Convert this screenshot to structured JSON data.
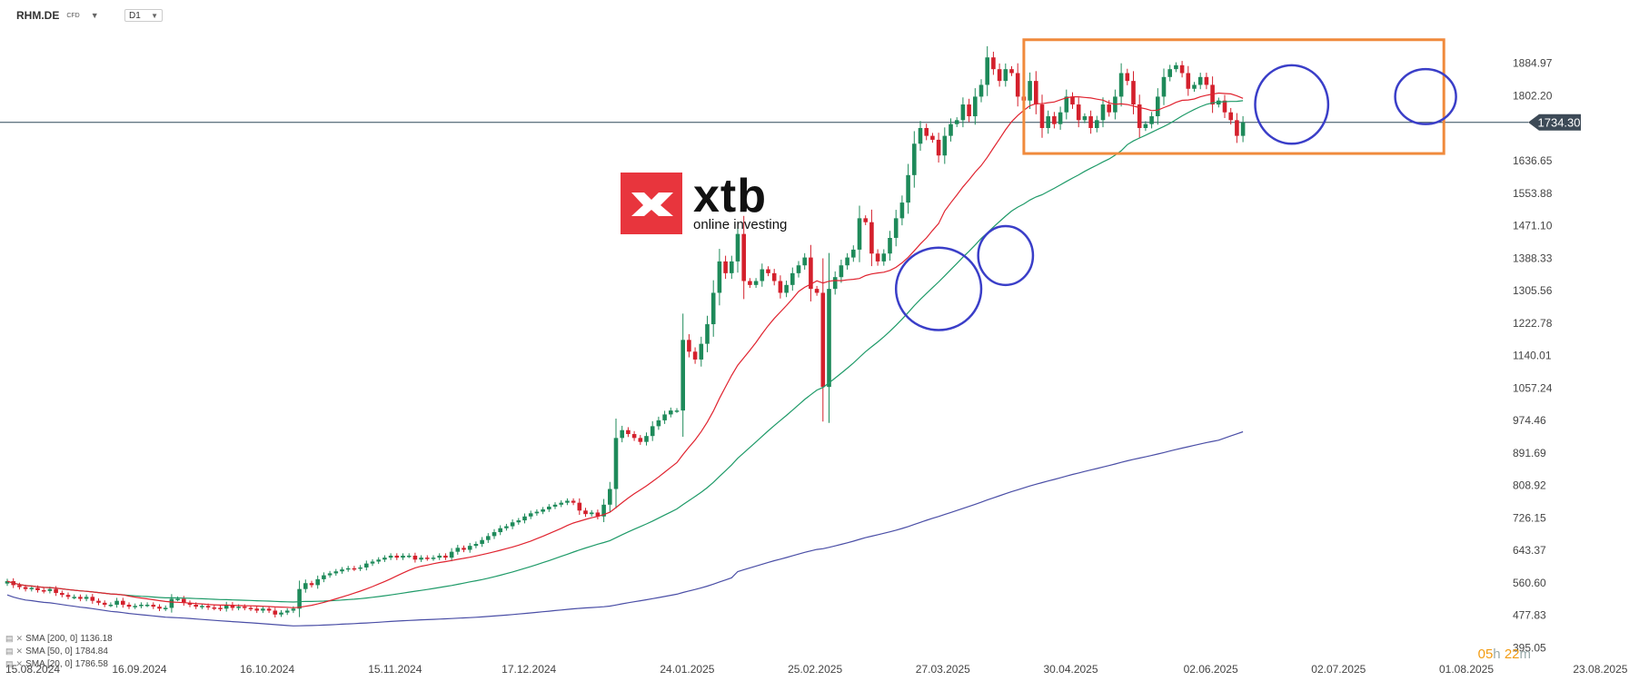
{
  "header": {
    "symbol": "RHM.DE",
    "symbol_type": "CFD",
    "timeframe": "D1"
  },
  "countdown": {
    "h": "05",
    "h_unit": "h",
    "m": "22",
    "m_unit": "m"
  },
  "logo": {
    "word": "xtb",
    "subtitle": "online investing"
  },
  "indicators": [
    {
      "label": "SMA [200, 0]",
      "value": "1136.18",
      "color": "#4a4ea6"
    },
    {
      "label": "SMA [50, 0]",
      "value": "1784.84",
      "color": "#1e9a68"
    },
    {
      "label": "SMA [20, 0]",
      "value": "1786.58",
      "color": "#e0232f"
    }
  ],
  "colors": {
    "up": "#1e8a5a",
    "down": "#d4202c",
    "box": "#f08a3c",
    "circle": "#3a3ec8",
    "price_line": "#2f4858",
    "price_tag": "#3d4a57"
  },
  "chart_data": {
    "type": "candlestick",
    "title": "",
    "ylim": [
      380,
      2000
    ],
    "y_ticks": [
      "1884.97",
      "1802.20",
      "1636.65",
      "1553.88",
      "1471.10",
      "1388.33",
      "1305.56",
      "1222.78",
      "1140.01",
      "1057.24",
      "974.46",
      "891.69",
      "808.92",
      "726.15",
      "643.37",
      "560.60",
      "477.83",
      "395.05"
    ],
    "x_ticks": [
      "15.08.2024",
      "16.09.2024",
      "16.10.2024",
      "15.11.2024",
      "17.12.2024",
      "24.01.2025",
      "25.02.2025",
      "27.03.2025",
      "30.04.2025",
      "02.06.2025",
      "02.07.2025",
      "01.08.2025",
      "23.08.2025"
    ],
    "x_tick_index": [
      0,
      22,
      43,
      64,
      86,
      112,
      133,
      154,
      175,
      198,
      219,
      240,
      262
    ],
    "last_price": "1734.30",
    "last_price_value": 1734.3,
    "closes": [
      565,
      555,
      550,
      545,
      548,
      542,
      540,
      545,
      535,
      530,
      525,
      525,
      520,
      525,
      515,
      510,
      505,
      505,
      515,
      505,
      500,
      502,
      505,
      505,
      500,
      495,
      497,
      520,
      520,
      510,
      505,
      500,
      502,
      498,
      497,
      495,
      505,
      497,
      500,
      497,
      495,
      490,
      495,
      490,
      480,
      485,
      490,
      495,
      545,
      560,
      555,
      570,
      580,
      585,
      590,
      595,
      598,
      597,
      600,
      610,
      615,
      620,
      625,
      630,
      625,
      630,
      630,
      620,
      625,
      623,
      625,
      630,
      625,
      640,
      650,
      645,
      655,
      660,
      670,
      680,
      690,
      700,
      705,
      715,
      720,
      730,
      738,
      742,
      748,
      755,
      760,
      765,
      770,
      765,
      745,
      736,
      740,
      730,
      760,
      800,
      930,
      950,
      940,
      930,
      920,
      935,
      960,
      975,
      990,
      1000,
      1000,
      1180,
      1150,
      1130,
      1170,
      1220,
      1300,
      1380,
      1350,
      1380,
      1450,
      1330,
      1320,
      1330,
      1360,
      1350,
      1330,
      1300,
      1320,
      1350,
      1370,
      1390,
      1310,
      1300,
      1060,
      1310,
      1340,
      1370,
      1390,
      1410,
      1490,
      1480,
      1400,
      1380,
      1400,
      1440,
      1490,
      1530,
      1600,
      1680,
      1720,
      1700,
      1690,
      1650,
      1700,
      1730,
      1740,
      1780,
      1750,
      1800,
      1830,
      1900,
      1870,
      1840,
      1870,
      1860,
      1800,
      1790,
      1840,
      1780,
      1720,
      1750,
      1730,
      1760,
      1800,
      1780,
      1740,
      1750,
      1720,
      1740,
      1780,
      1760,
      1800,
      1860,
      1840,
      1780,
      1720,
      1730,
      1750,
      1800,
      1850,
      1870,
      1880,
      1860,
      1820,
      1830,
      1850,
      1830,
      1780,
      1790,
      1760,
      1740,
      1700,
      1734.3
    ],
    "series": [
      {
        "name": "SMA [200, 0]",
        "last": 1136.18
      },
      {
        "name": "SMA [50, 0]",
        "last": 1784.84
      },
      {
        "name": "SMA [20, 0]",
        "last": 1786.58
      }
    ],
    "annotations": [
      {
        "type": "rectangle",
        "x0": 167,
        "x1": 236,
        "y0": 1655,
        "y1": 1945
      },
      {
        "type": "circle",
        "x": 153,
        "y": 1310,
        "rx": 7,
        "ry": 105
      },
      {
        "type": "circle",
        "x": 164,
        "y": 1395,
        "rx": 4.5,
        "ry": 75
      },
      {
        "type": "circle",
        "x": 211,
        "y": 1780,
        "rx": 6,
        "ry": 100
      },
      {
        "type": "circle",
        "x": 233,
        "y": 1800,
        "rx": 5,
        "ry": 70
      }
    ]
  }
}
